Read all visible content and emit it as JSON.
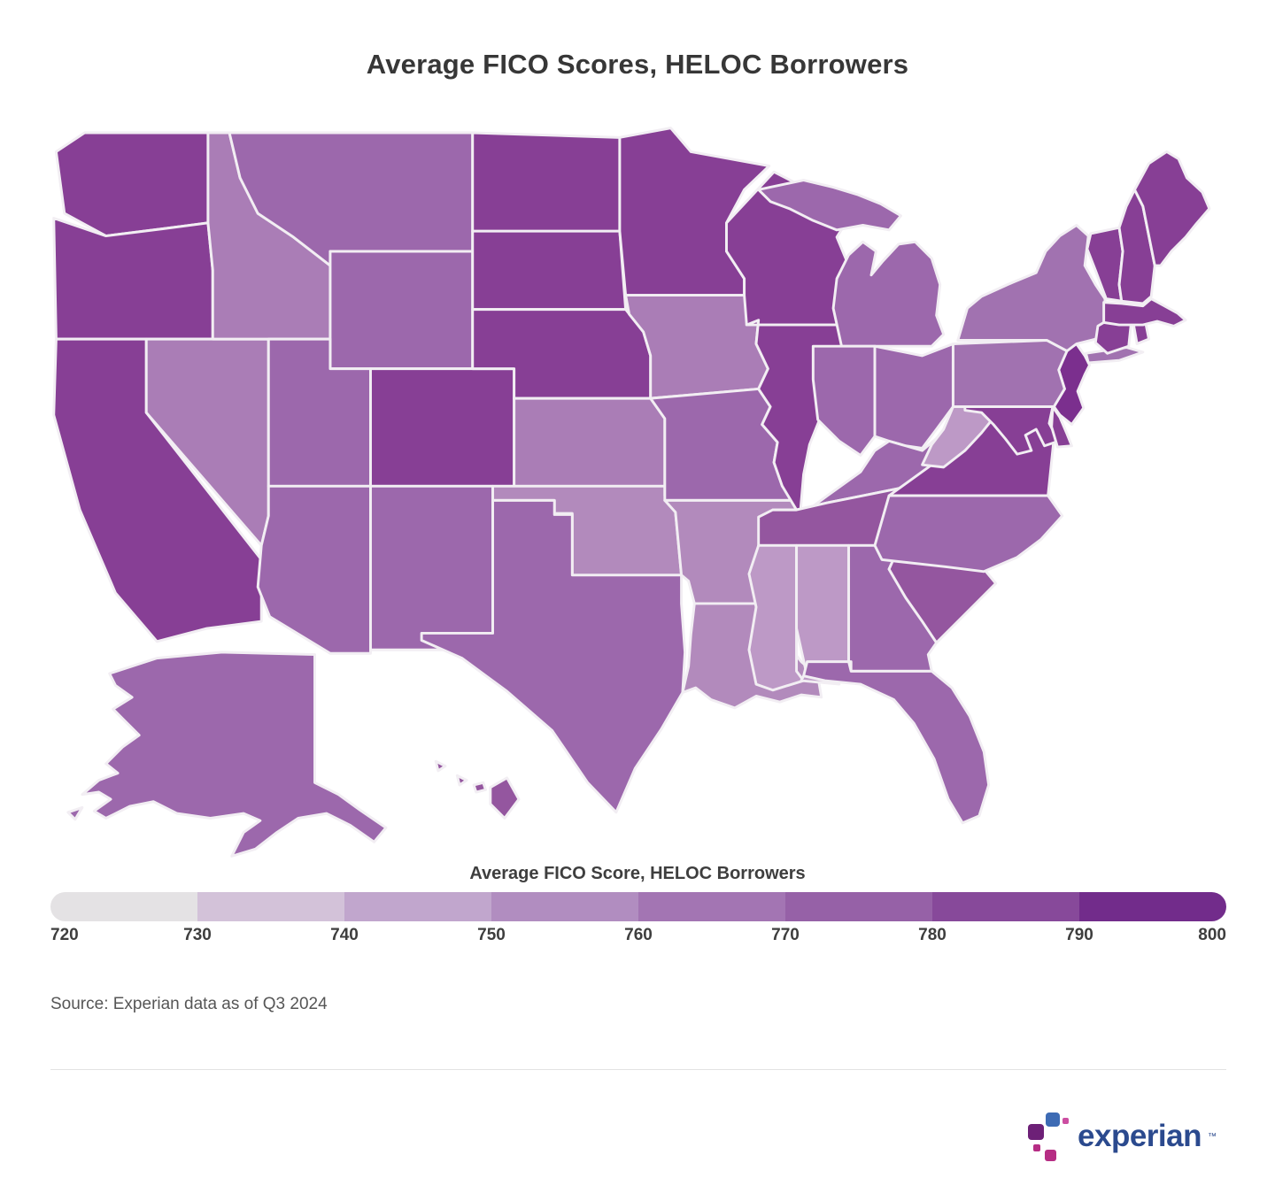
{
  "page": {
    "title": "Average FICO Scores, HELOC Borrowers",
    "source": "Source: Experian data as of Q3 2024"
  },
  "legend": {
    "title": "Average FICO Score, HELOC Borrowers",
    "ticks": [
      "720",
      "730",
      "740",
      "750",
      "760",
      "770",
      "780",
      "790",
      "800"
    ],
    "colors": [
      "#e4e2e4",
      "#d3c2d9",
      "#c1a6cd",
      "#b18dc0",
      "#a375b3",
      "#9661a7",
      "#87499a",
      "#722c8b"
    ]
  },
  "logo": {
    "text": "experian",
    "tm": "™",
    "colors": {
      "blue": "#3d6bb4",
      "purple": "#6d2077",
      "magenta": "#b62d84",
      "pink": "#cc4ea1",
      "wordmark": "#2b4a8e"
    }
  },
  "chart_data": {
    "type": "heatmap",
    "subtype": "us-state-choropleth",
    "title": "Average FICO Scores, HELOC Borrowers",
    "color_scale": {
      "label": "Average FICO Score, HELOC Borrowers",
      "min": 720,
      "max": 800,
      "step": 10,
      "colors": [
        "#e4e2e4",
        "#d3c2d9",
        "#c1a6cd",
        "#b18dc0",
        "#a375b3",
        "#9661a7",
        "#87499a",
        "#722c8b"
      ]
    },
    "states": [
      {
        "code": "WA",
        "name": "Washington",
        "color": "#873f95",
        "value_range": "780-790"
      },
      {
        "code": "OR",
        "name": "Oregon",
        "color": "#873f95",
        "value_range": "780-790"
      },
      {
        "code": "CA",
        "name": "California",
        "color": "#873f95",
        "value_range": "780-790"
      },
      {
        "code": "NV",
        "name": "Nevada",
        "color": "#aa7db6",
        "value_range": "760-770"
      },
      {
        "code": "ID",
        "name": "Idaho",
        "color": "#aa7db6",
        "value_range": "760-770"
      },
      {
        "code": "MT",
        "name": "Montana",
        "color": "#9c68ac",
        "value_range": "770-780"
      },
      {
        "code": "WY",
        "name": "Wyoming",
        "color": "#9c68ac",
        "value_range": "770-780"
      },
      {
        "code": "UT",
        "name": "Utah",
        "color": "#9c68ac",
        "value_range": "770-780"
      },
      {
        "code": "CO",
        "name": "Colorado",
        "color": "#873f95",
        "value_range": "780-790"
      },
      {
        "code": "AZ",
        "name": "Arizona",
        "color": "#9c68ac",
        "value_range": "770-780"
      },
      {
        "code": "NM",
        "name": "New Mexico",
        "color": "#9c68ac",
        "value_range": "770-780"
      },
      {
        "code": "ND",
        "name": "North Dakota",
        "color": "#873f95",
        "value_range": "780-790"
      },
      {
        "code": "SD",
        "name": "South Dakota",
        "color": "#873f95",
        "value_range": "780-790"
      },
      {
        "code": "NE",
        "name": "Nebraska",
        "color": "#873f95",
        "value_range": "780-790"
      },
      {
        "code": "KS",
        "name": "Kansas",
        "color": "#aa7db6",
        "value_range": "760-770"
      },
      {
        "code": "OK",
        "name": "Oklahoma",
        "color": "#b28abc",
        "value_range": "750-760"
      },
      {
        "code": "TX",
        "name": "Texas",
        "color": "#9c68ac",
        "value_range": "770-780"
      },
      {
        "code": "MN",
        "name": "Minnesota",
        "color": "#873f95",
        "value_range": "780-790"
      },
      {
        "code": "IA",
        "name": "Iowa",
        "color": "#aa7db6",
        "value_range": "760-770"
      },
      {
        "code": "MO",
        "name": "Missouri",
        "color": "#9c68ac",
        "value_range": "770-780"
      },
      {
        "code": "AR",
        "name": "Arkansas",
        "color": "#b28abc",
        "value_range": "750-760"
      },
      {
        "code": "LA",
        "name": "Louisiana",
        "color": "#b28abc",
        "value_range": "750-760"
      },
      {
        "code": "WI",
        "name": "Wisconsin",
        "color": "#873f95",
        "value_range": "780-790"
      },
      {
        "code": "IL",
        "name": "Illinois",
        "color": "#873f95",
        "value_range": "780-790"
      },
      {
        "code": "MI",
        "name": "Michigan",
        "color": "#9c68ac",
        "value_range": "770-780"
      },
      {
        "code": "IN",
        "name": "Indiana",
        "color": "#9c68ac",
        "value_range": "770-780"
      },
      {
        "code": "OH",
        "name": "Ohio",
        "color": "#9c68ac",
        "value_range": "770-780"
      },
      {
        "code": "KY",
        "name": "Kentucky",
        "color": "#9c68ac",
        "value_range": "770-780"
      },
      {
        "code": "TN",
        "name": "Tennessee",
        "color": "#94569f",
        "value_range": "770-780"
      },
      {
        "code": "MS",
        "name": "Mississippi",
        "color": "#bd99c6",
        "value_range": "740-750"
      },
      {
        "code": "AL",
        "name": "Alabama",
        "color": "#bd99c6",
        "value_range": "740-750"
      },
      {
        "code": "GA",
        "name": "Georgia",
        "color": "#9c68ac",
        "value_range": "770-780"
      },
      {
        "code": "FL",
        "name": "Florida",
        "color": "#9c68ac",
        "value_range": "770-780"
      },
      {
        "code": "SC",
        "name": "South Carolina",
        "color": "#94569f",
        "value_range": "770-780"
      },
      {
        "code": "NC",
        "name": "North Carolina",
        "color": "#9c68ac",
        "value_range": "770-780"
      },
      {
        "code": "VA",
        "name": "Virginia",
        "color": "#873f95",
        "value_range": "780-790"
      },
      {
        "code": "WV",
        "name": "West Virginia",
        "color": "#bd99c6",
        "value_range": "740-750"
      },
      {
        "code": "MD",
        "name": "Maryland",
        "color": "#873f95",
        "value_range": "780-790"
      },
      {
        "code": "DE",
        "name": "Delaware",
        "color": "#873f95",
        "value_range": "780-790"
      },
      {
        "code": "NJ",
        "name": "New Jersey",
        "color": "#7b2f8e",
        "value_range": "790-800"
      },
      {
        "code": "PA",
        "name": "Pennsylvania",
        "color": "#a172b0",
        "value_range": "770-780"
      },
      {
        "code": "NY",
        "name": "New York",
        "color": "#a172b0",
        "value_range": "770-780"
      },
      {
        "code": "CT",
        "name": "Connecticut",
        "color": "#873f95",
        "value_range": "780-790"
      },
      {
        "code": "RI",
        "name": "Rhode Island",
        "color": "#873f95",
        "value_range": "780-790"
      },
      {
        "code": "MA",
        "name": "Massachusetts",
        "color": "#873f95",
        "value_range": "780-790"
      },
      {
        "code": "VT",
        "name": "Vermont",
        "color": "#873f95",
        "value_range": "780-790"
      },
      {
        "code": "NH",
        "name": "New Hampshire",
        "color": "#873f95",
        "value_range": "780-790"
      },
      {
        "code": "ME",
        "name": "Maine",
        "color": "#873f95",
        "value_range": "780-790"
      },
      {
        "code": "AK",
        "name": "Alaska",
        "color": "#9c68ac",
        "value_range": "770-780"
      },
      {
        "code": "HI",
        "name": "Hawaii",
        "color": "#94569f",
        "value_range": "770-780"
      }
    ]
  }
}
